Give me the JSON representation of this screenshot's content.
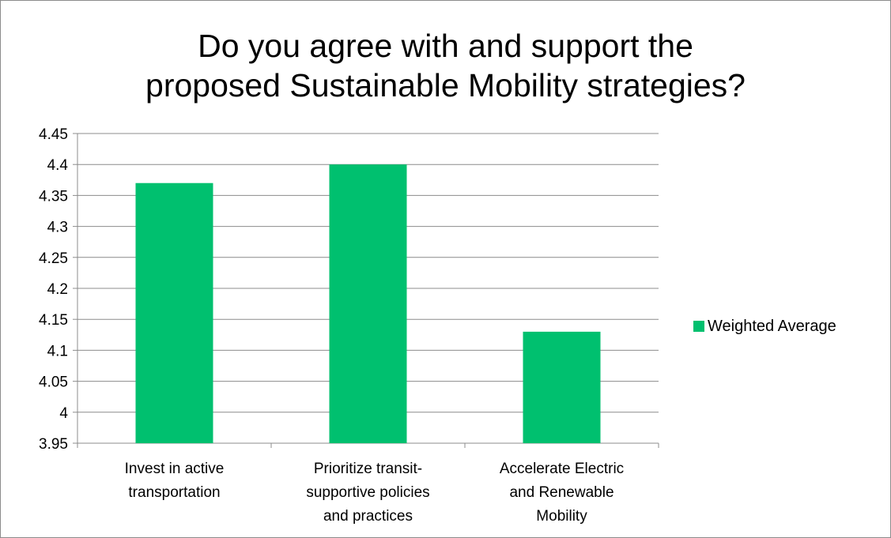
{
  "chart_data": {
    "type": "bar",
    "title_lines": [
      "Do you agree with and support the",
      "proposed Sustainable Mobility strategies?"
    ],
    "categories": [
      [
        "Invest in active",
        "transportation"
      ],
      [
        "Prioritize transit-",
        "supportive policies",
        "and practices"
      ],
      [
        "Accelerate Electric",
        "and Renewable",
        "Mobility"
      ]
    ],
    "series": [
      {
        "name": "Weighted Average",
        "values": [
          4.37,
          4.4,
          4.13
        ],
        "color": "#00c06f"
      }
    ],
    "ylim": [
      3.95,
      4.45
    ],
    "yticks": [
      "4.45",
      "4.4",
      "4.35",
      "4.3",
      "4.25",
      "4.2",
      "4.15",
      "4.1",
      "4.05",
      "4",
      "3.95"
    ],
    "grid": true,
    "legend_position": "right"
  }
}
